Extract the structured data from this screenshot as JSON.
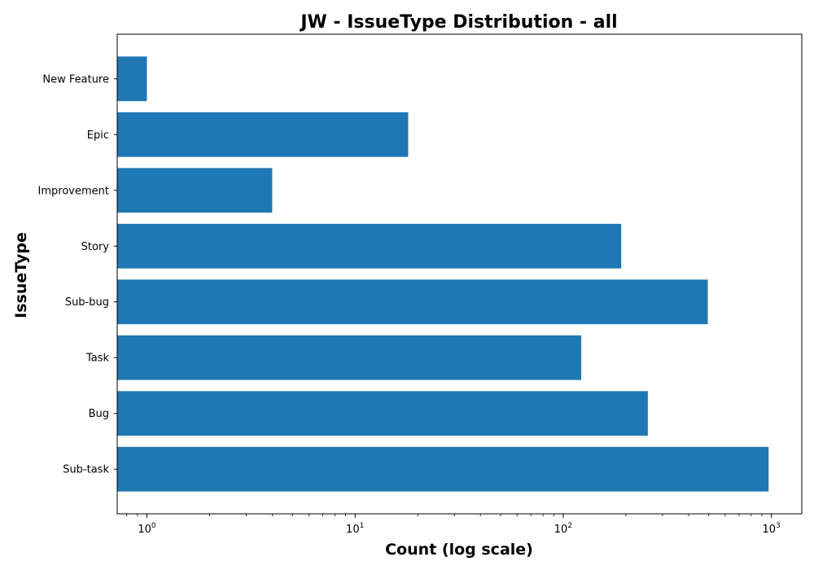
{
  "chart_data": {
    "type": "bar",
    "orientation": "horizontal",
    "title": "JW - IssueType Distribution - all",
    "xlabel": "Count (log scale)",
    "ylabel": "IssueType",
    "x_scale": "log",
    "xlim": [
      0.72,
      1400
    ],
    "x_ticks": [
      {
        "value": 1,
        "base": "10",
        "exp": "0"
      },
      {
        "value": 10,
        "base": "10",
        "exp": "1"
      },
      {
        "value": 100,
        "base": "10",
        "exp": "2"
      },
      {
        "value": 1000,
        "base": "10",
        "exp": "3"
      }
    ],
    "categories": [
      "Sub-task",
      "Bug",
      "Task",
      "Sub-bug",
      "Story",
      "Improvement",
      "Epic",
      "New Feature"
    ],
    "values": [
      970,
      255,
      122,
      495,
      190,
      4,
      18,
      1
    ],
    "bar_color": "#1f77b4",
    "grid": false,
    "legend": "none"
  }
}
